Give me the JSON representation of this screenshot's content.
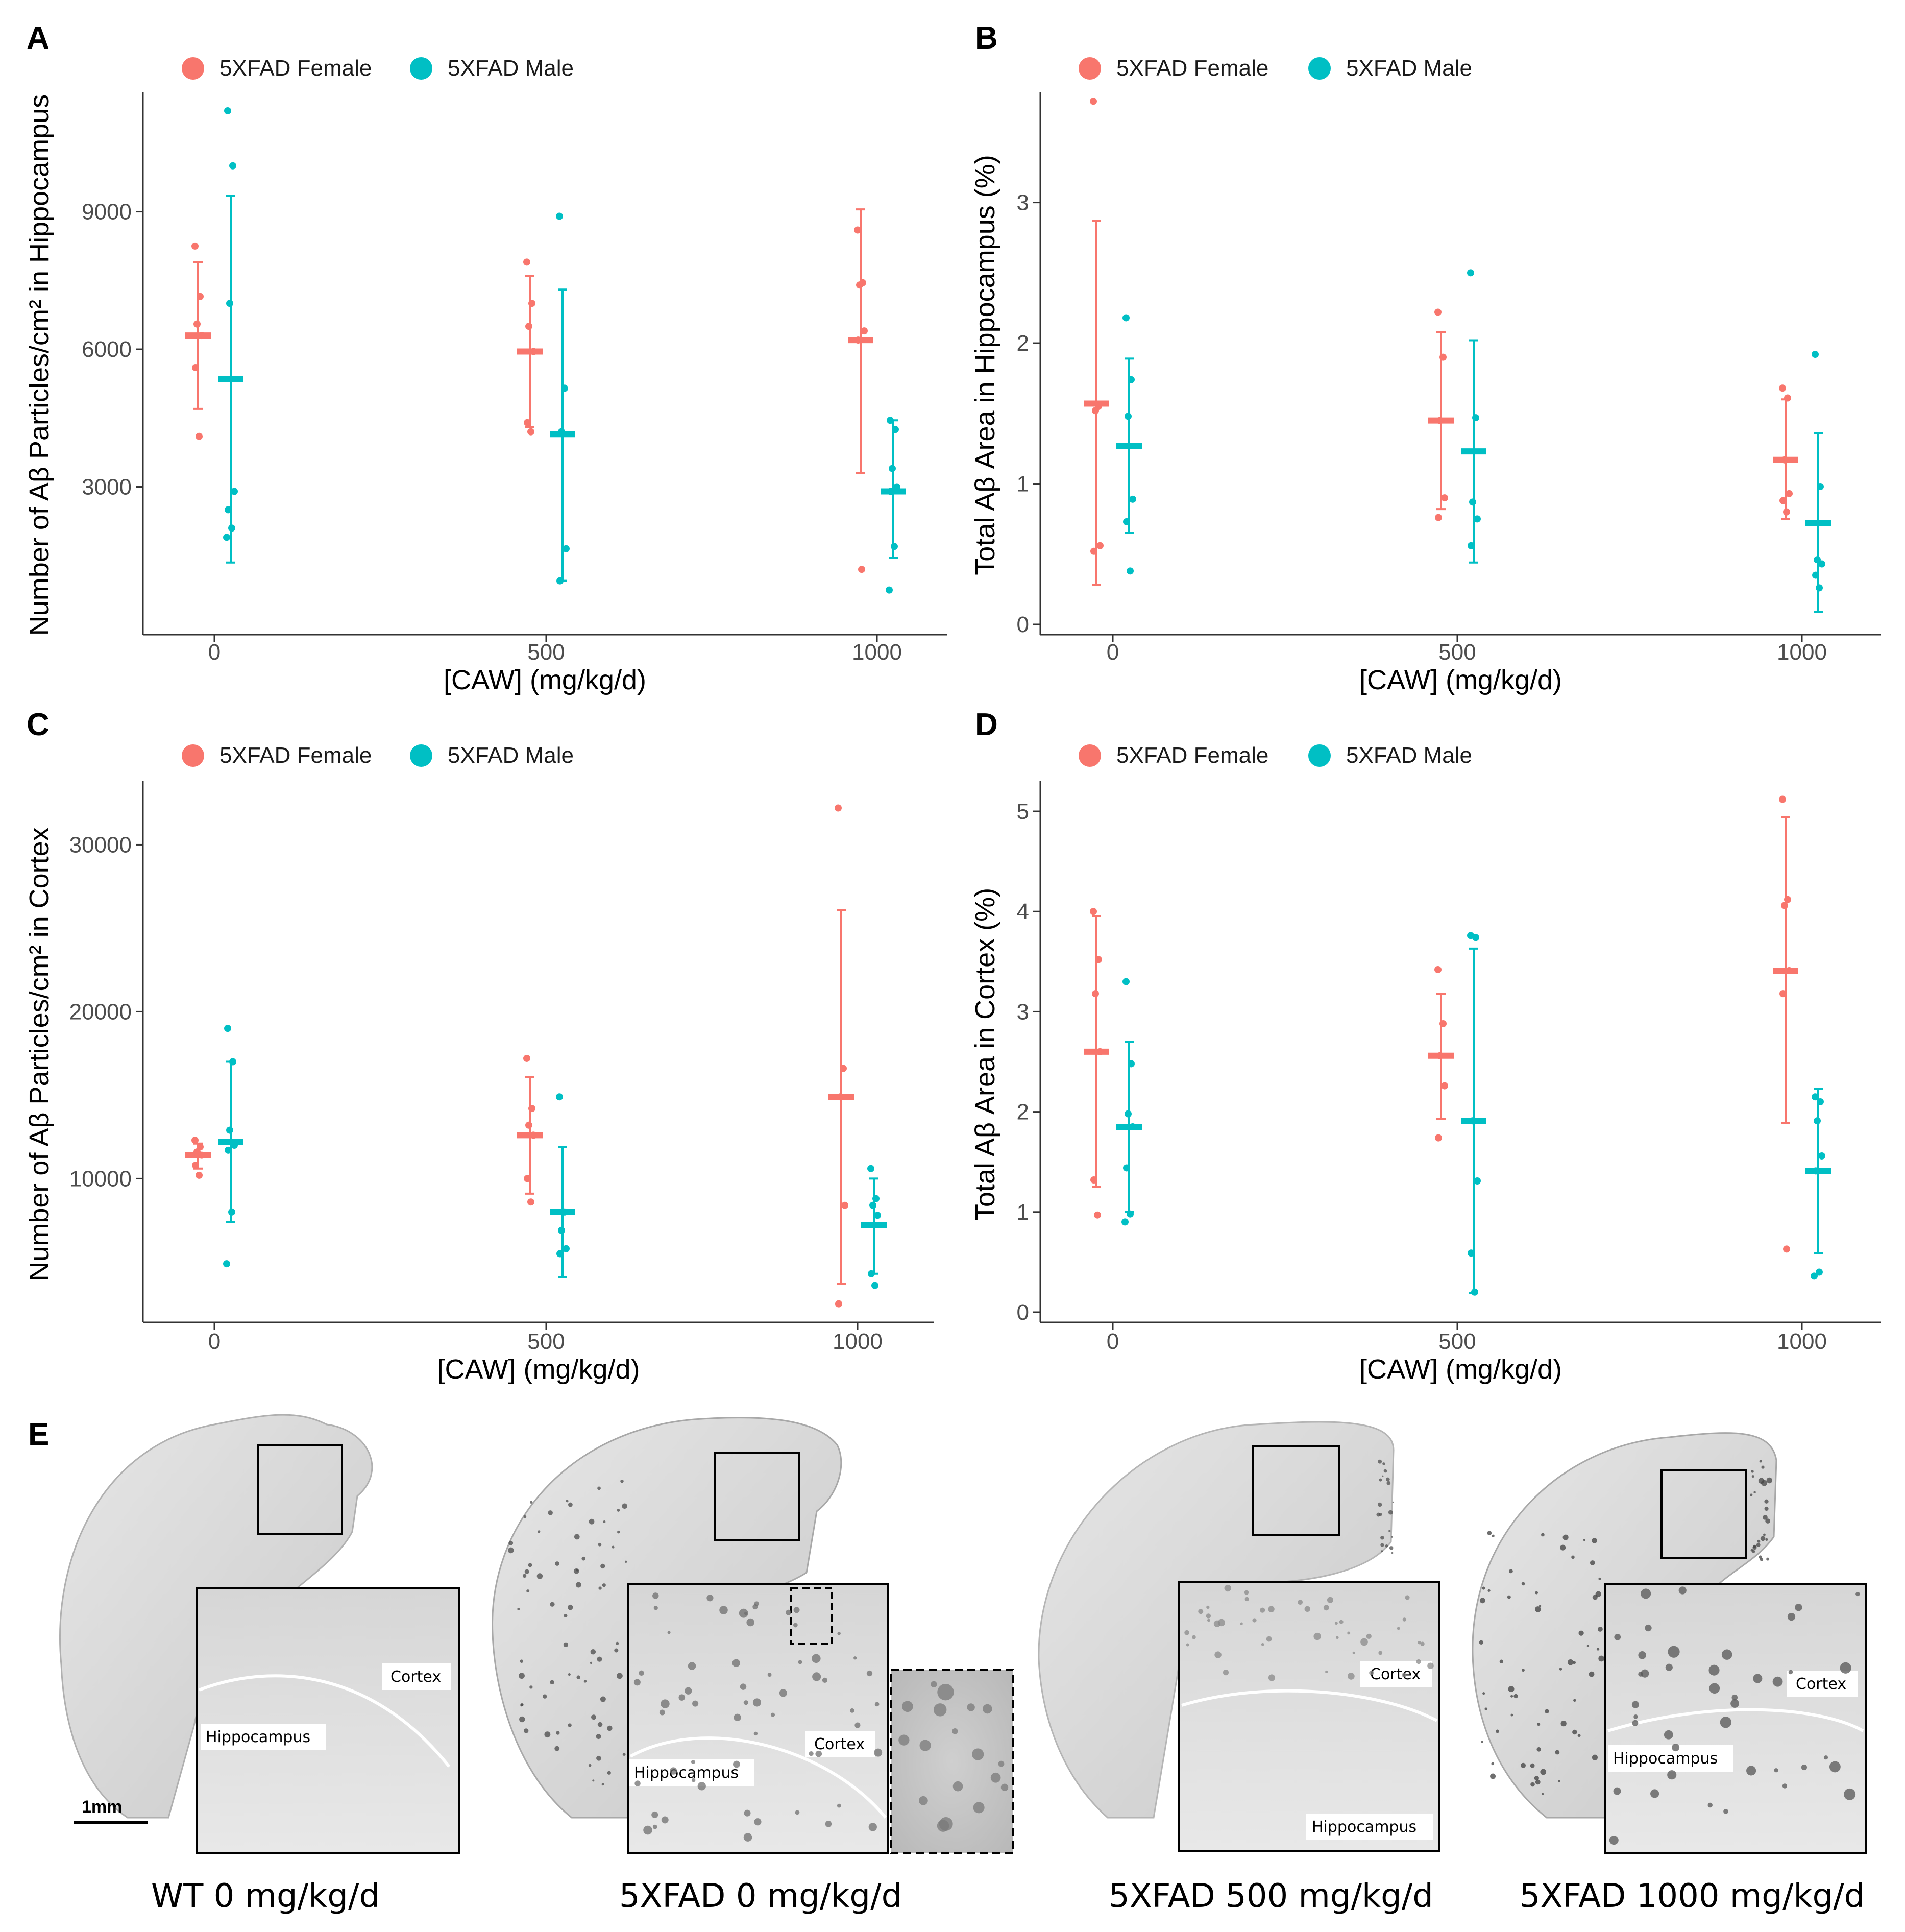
{
  "colors": {
    "female": "#F8766D",
    "male": "#00BFC4"
  },
  "legend": {
    "female": "5XFAD Female",
    "male": "5XFAD Male"
  },
  "chart_data": [
    {
      "panel": "A",
      "type": "scatter",
      "title": "",
      "xlabel": "[CAW] (mg/kg/d)",
      "ylabel": "Number of Aβ Particles/cm² in Hippocampus",
      "categories": [
        "0",
        "500",
        "1000"
      ],
      "ylim": [
        0,
        11500
      ],
      "yticks": [
        3000,
        6000,
        9000
      ],
      "series": [
        {
          "name": "5XFAD Female",
          "groups": [
            {
              "dose": "0",
              "mean": 6300,
              "err": [
                4700,
                7900
              ],
              "points": [
                8250,
                7150,
                6550,
                6300,
                5600,
                4100
              ]
            },
            {
              "dose": "500",
              "mean": 5950,
              "err": [
                4300,
                7600
              ],
              "points": [
                7900,
                7000,
                6500,
                5950,
                4400,
                4200
              ]
            },
            {
              "dose": "1000",
              "mean": 6200,
              "err": [
                3300,
                9050
              ],
              "points": [
                8600,
                7450,
                7400,
                6400,
                6200,
                1200
              ]
            }
          ]
        },
        {
          "name": "5XFAD Male",
          "groups": [
            {
              "dose": "0",
              "mean": 5350,
              "err": [
                1350,
                9350
              ],
              "points": [
                11200,
                10000,
                7000,
                2900,
                2500,
                2100,
                1900
              ]
            },
            {
              "dose": "500",
              "mean": 4150,
              "err": [
                950,
                7300
              ],
              "points": [
                8900,
                5150,
                4200,
                1650,
                950
              ]
            },
            {
              "dose": "1000",
              "mean": 2900,
              "err": [
                1450,
                4450
              ],
              "points": [
                4450,
                4250,
                3400,
                3000,
                2900,
                1700,
                750
              ]
            }
          ]
        }
      ]
    },
    {
      "panel": "B",
      "type": "scatter",
      "title": "",
      "xlabel": "[CAW] (mg/kg/d)",
      "ylabel": "Total Aβ Area in Hippocampus (%)",
      "categories": [
        "0",
        "500",
        "1000"
      ],
      "ylim": [
        0,
        3.75
      ],
      "yticks": [
        0,
        1,
        2,
        3
      ],
      "series": [
        {
          "name": "5XFAD Female",
          "groups": [
            {
              "dose": "0",
              "mean": 1.57,
              "err": [
                0.28,
                2.87
              ],
              "points": [
                3.72,
                1.55,
                1.52,
                0.56,
                0.52
              ]
            },
            {
              "dose": "500",
              "mean": 1.45,
              "err": [
                0.82,
                2.08
              ],
              "points": [
                2.22,
                1.9,
                1.45,
                0.9,
                0.76
              ]
            },
            {
              "dose": "1000",
              "mean": 1.17,
              "err": [
                0.75,
                1.6
              ],
              "points": [
                1.68,
                1.61,
                1.17,
                0.93,
                0.88,
                0.8
              ]
            }
          ]
        },
        {
          "name": "5XFAD Male",
          "groups": [
            {
              "dose": "0",
              "mean": 1.27,
              "err": [
                0.65,
                1.89
              ],
              "points": [
                2.18,
                1.74,
                1.48,
                0.89,
                0.73,
                0.38
              ]
            },
            {
              "dose": "500",
              "mean": 1.23,
              "err": [
                0.44,
                2.02
              ],
              "points": [
                2.5,
                1.47,
                0.87,
                0.75,
                0.56
              ]
            },
            {
              "dose": "1000",
              "mean": 0.72,
              "err": [
                0.09,
                1.36
              ],
              "points": [
                1.92,
                0.98,
                0.46,
                0.43,
                0.35,
                0.26
              ]
            }
          ]
        }
      ]
    },
    {
      "panel": "C",
      "type": "scatter",
      "title": "",
      "xlabel": "[CAW] (mg/kg/d)",
      "ylabel": "Number of Aβ Particles/cm² in Cortex",
      "categories": [
        "0",
        "500",
        "1000"
      ],
      "ylim": [
        2000,
        33500
      ],
      "yticks": [
        10000,
        20000,
        30000
      ],
      "series": [
        {
          "name": "5XFAD Female",
          "groups": [
            {
              "dose": "0",
              "mean": 11400,
              "err": [
                10600,
                12100
              ],
              "points": [
                12300,
                11900,
                11600,
                11400,
                10800,
                10200
              ]
            },
            {
              "dose": "500",
              "mean": 12600,
              "err": [
                9100,
                16100
              ],
              "points": [
                17200,
                14200,
                13200,
                12600,
                10000,
                8600
              ]
            },
            {
              "dose": "1000",
              "mean": 14900,
              "err": [
                3700,
                26100
              ],
              "points": [
                32200,
                16600,
                14900,
                8400,
                2500
              ]
            }
          ]
        },
        {
          "name": "5XFAD Male",
          "groups": [
            {
              "dose": "0",
              "mean": 12200,
              "err": [
                7400,
                17000
              ],
              "points": [
                19000,
                17000,
                12900,
                12000,
                11700,
                8000,
                4900
              ]
            },
            {
              "dose": "500",
              "mean": 8000,
              "err": [
                4100,
                11900
              ],
              "points": [
                14900,
                8000,
                6900,
                5800,
                5500
              ]
            },
            {
              "dose": "1000",
              "mean": 7200,
              "err": [
                4300,
                10000
              ],
              "points": [
                10600,
                8800,
                8400,
                7800,
                4300,
                3600
              ]
            }
          ]
        }
      ]
    },
    {
      "panel": "D",
      "type": "scatter",
      "title": "",
      "xlabel": "[CAW] (mg/kg/d)",
      "ylabel": "Total Aβ Area in Cortex (%)",
      "categories": [
        "0",
        "500",
        "1000"
      ],
      "ylim": [
        0,
        5.25
      ],
      "yticks": [
        0,
        1,
        2,
        3,
        4,
        5
      ],
      "series": [
        {
          "name": "5XFAD Female",
          "groups": [
            {
              "dose": "0",
              "mean": 2.6,
              "err": [
                1.25,
                3.95
              ],
              "points": [
                4.0,
                3.52,
                3.18,
                2.6,
                1.32,
                0.97
              ]
            },
            {
              "dose": "500",
              "mean": 2.56,
              "err": [
                1.93,
                3.18
              ],
              "points": [
                3.42,
                2.88,
                2.56,
                2.26,
                1.74
              ]
            },
            {
              "dose": "1000",
              "mean": 3.41,
              "err": [
                1.89,
                4.94
              ],
              "points": [
                5.12,
                4.12,
                4.06,
                3.41,
                3.18,
                0.63
              ]
            }
          ]
        },
        {
          "name": "5XFAD Male",
          "groups": [
            {
              "dose": "0",
              "mean": 1.85,
              "err": [
                1.0,
                2.7
              ],
              "points": [
                3.3,
                2.48,
                1.98,
                1.85,
                1.44,
                0.98,
                0.9
              ]
            },
            {
              "dose": "500",
              "mean": 1.91,
              "err": [
                0.19,
                3.63
              ],
              "points": [
                3.76,
                3.74,
                1.91,
                1.31,
                0.59,
                0.2
              ]
            },
            {
              "dose": "1000",
              "mean": 1.41,
              "err": [
                0.59,
                2.23
              ],
              "points": [
                2.15,
                2.1,
                1.91,
                1.56,
                1.41,
                0.4,
                0.36
              ]
            }
          ]
        }
      ]
    }
  ],
  "panel_e": {
    "letter": "E",
    "scale_bar": "1mm",
    "sections": [
      {
        "caption": "WT 0 mg/kg/d",
        "labels": [
          "Cortex",
          "Hippocampus"
        ]
      },
      {
        "caption": "5XFAD 0 mg/kg/d",
        "labels": [
          "Cortex",
          "Hippocampus"
        ]
      },
      {
        "caption": "5XFAD 500 mg/kg/d",
        "labels": [
          "Cortex",
          "Hippocampus"
        ]
      },
      {
        "caption": "5XFAD 1000 mg/kg/d",
        "labels": [
          "Cortex",
          "Hippocampus"
        ]
      }
    ]
  }
}
